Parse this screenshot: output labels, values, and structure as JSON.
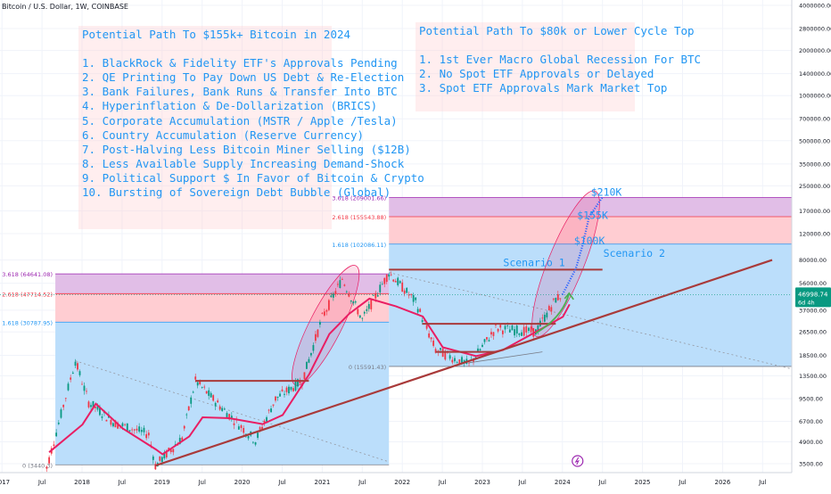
{
  "symbol_title": "Bitcoin / U.S. Dollar, 1W, COINBASE",
  "notes": {
    "left": {
      "title": "Potential Path To $155k+ Bitcoin in 2024",
      "items": [
        "1. BlackRock & Fidelity ETF's Approvals Pending",
        "2. QE Printing To Pay Down US Debt & Re-Election",
        "3. Bank Failures, Bank Runs & Transfer Into BTC",
        "4. Hyperinflation & De-Dollarization (BRICS)",
        "5. Corporate Accumulation (MSTR / Apple /Tesla)",
        "6. Country Accumulation (Reserve Currency)",
        "7. Post-Halving Less Bitcoin Miner Selling ($12B)",
        "8. Less Available Supply Increasing Demand-Shock",
        "9. Political Support $ In Favor of Bitcoin & Crypto",
        "10. Bursting of Sovereign Debt Bubble (Global)"
      ]
    },
    "right": {
      "title": "Potential Path To $80k or Lower Cycle Top",
      "items": [
        "1. 1st Ever Macro Global Recession For BTC",
        "2.  No Spot ETF Approvals or Delayed",
        "3.  Spot ETF Approvals Mark Market Top"
      ]
    }
  },
  "chart_data": {
    "type": "line",
    "scale": "log",
    "x_ticks": [
      "2017",
      "Jul",
      "2018",
      "Jul",
      "2019",
      "Jul",
      "2020",
      "Jul",
      "2021",
      "Jul",
      "2022",
      "Jul",
      "2023",
      "Jul",
      "2024",
      "Jul",
      "2025",
      "Jul",
      "2026",
      "Jul"
    ],
    "y_ticks": [
      "4000000.00",
      "2800000.00",
      "2000000.00",
      "1400000.00",
      "1000000.00",
      "700000.00",
      "500000.00",
      "350000.00",
      "250000.00",
      "170000.00",
      "120000.00",
      "80000.00",
      "56000.00",
      "37000.00",
      "26500.00",
      "18500.00",
      "13500.00",
      "9500.00",
      "6700.00",
      "4900.00",
      "3500.00"
    ],
    "ylim": [
      3200,
      4200000
    ],
    "current_price": {
      "value": "46998.74",
      "countdown": "6d 4h",
      "color": "#089981"
    },
    "price_series_approx": [
      {
        "date": "2017-07",
        "value": 2500
      },
      {
        "date": "2017-12",
        "value": 17000
      },
      {
        "date": "2018-02",
        "value": 9000
      },
      {
        "date": "2018-06",
        "value": 6500
      },
      {
        "date": "2018-11",
        "value": 5500
      },
      {
        "date": "2018-12",
        "value": 3400
      },
      {
        "date": "2019-04",
        "value": 5200
      },
      {
        "date": "2019-06",
        "value": 12500
      },
      {
        "date": "2019-10",
        "value": 8200
      },
      {
        "date": "2020-03",
        "value": 5000
      },
      {
        "date": "2020-06",
        "value": 9500
      },
      {
        "date": "2020-10",
        "value": 12500
      },
      {
        "date": "2021-01",
        "value": 33000
      },
      {
        "date": "2021-04",
        "value": 60000
      },
      {
        "date": "2021-07",
        "value": 32000
      },
      {
        "date": "2021-11",
        "value": 66000
      },
      {
        "date": "2022-03",
        "value": 42000
      },
      {
        "date": "2022-06",
        "value": 20000
      },
      {
        "date": "2022-11",
        "value": 16000
      },
      {
        "date": "2023-03",
        "value": 28000
      },
      {
        "date": "2023-09",
        "value": 26500
      },
      {
        "date": "2023-12",
        "value": 44000
      },
      {
        "date": "2024-01",
        "value": 46998.74
      }
    ],
    "projection_approx": [
      {
        "date": "2024-01",
        "value": 47000
      },
      {
        "date": "2024-03",
        "value": 70000
      },
      {
        "date": "2024-04",
        "value": 100000
      },
      {
        "date": "2024-05",
        "value": 155000
      },
      {
        "date": "2024-07",
        "value": 210000
      }
    ],
    "fib_zones": [
      {
        "label": "3.618 (64641.08)",
        "value": 64641.08
      },
      {
        "label": "2.618 (47714.52)",
        "value": 47714.52
      },
      {
        "label": "1.618 (30787.95)",
        "value": 30787.95
      },
      {
        "label": "0 (3440.3)",
        "value": 3440.3
      },
      {
        "label": "3.618 (209001.66)",
        "value": 209001.66
      },
      {
        "label": "2.618 (155543.88)",
        "value": 155543.88
      },
      {
        "label": "1.618 (102086.11)",
        "value": 102086.11
      },
      {
        "label": "0 (15591.43)",
        "value": 15591.43
      }
    ],
    "annotations": [
      "$210K",
      "$155K",
      "$100K",
      "Scenario 1",
      "Scenario 2"
    ],
    "colors": {
      "support_line": "#a93a3a",
      "moving_average": "#e91e63",
      "projection": "#2962ff",
      "fib_blue": "#bbdefb",
      "fib_red": "#ffcdd2",
      "fib_purple": "#e1bee7",
      "label_blue": "#2196f3"
    }
  }
}
